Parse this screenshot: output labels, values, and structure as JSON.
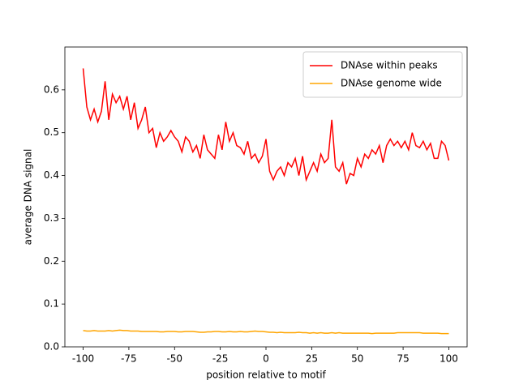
{
  "chart_data": {
    "type": "line",
    "xlabel": "position relative to motif",
    "ylabel": "average DNA signal",
    "x": [
      -100,
      -98,
      -96,
      -94,
      -92,
      -90,
      -88,
      -86,
      -84,
      -82,
      -80,
      -78,
      -76,
      -74,
      -72,
      -70,
      -68,
      -66,
      -64,
      -62,
      -60,
      -58,
      -56,
      -54,
      -52,
      -50,
      -48,
      -46,
      -44,
      -42,
      -40,
      -38,
      -36,
      -34,
      -32,
      -30,
      -28,
      -26,
      -24,
      -22,
      -20,
      -18,
      -16,
      -14,
      -12,
      -10,
      -8,
      -6,
      -4,
      -2,
      0,
      2,
      4,
      6,
      8,
      10,
      12,
      14,
      16,
      18,
      20,
      22,
      24,
      26,
      28,
      30,
      32,
      34,
      36,
      38,
      40,
      42,
      44,
      46,
      48,
      50,
      52,
      54,
      56,
      58,
      60,
      62,
      64,
      66,
      68,
      70,
      72,
      74,
      76,
      78,
      80,
      82,
      84,
      86,
      88,
      90,
      92,
      94,
      96,
      98,
      100
    ],
    "series": [
      {
        "name": "DNAse within peaks",
        "color": "#ff0000",
        "values": [
          0.65,
          0.56,
          0.53,
          0.555,
          0.525,
          0.55,
          0.62,
          0.53,
          0.59,
          0.57,
          0.585,
          0.555,
          0.585,
          0.53,
          0.57,
          0.51,
          0.53,
          0.56,
          0.5,
          0.51,
          0.465,
          0.5,
          0.48,
          0.49,
          0.505,
          0.49,
          0.48,
          0.455,
          0.49,
          0.48,
          0.455,
          0.47,
          0.44,
          0.495,
          0.46,
          0.45,
          0.44,
          0.495,
          0.46,
          0.525,
          0.48,
          0.5,
          0.47,
          0.465,
          0.45,
          0.48,
          0.44,
          0.45,
          0.43,
          0.445,
          0.485,
          0.41,
          0.39,
          0.41,
          0.42,
          0.4,
          0.43,
          0.42,
          0.44,
          0.4,
          0.445,
          0.39,
          0.41,
          0.43,
          0.41,
          0.45,
          0.43,
          0.44,
          0.53,
          0.42,
          0.41,
          0.43,
          0.38,
          0.405,
          0.4,
          0.44,
          0.42,
          0.45,
          0.44,
          0.46,
          0.45,
          0.47,
          0.43,
          0.47,
          0.485,
          0.47,
          0.48,
          0.465,
          0.48,
          0.46,
          0.5,
          0.47,
          0.465,
          0.48,
          0.46,
          0.475,
          0.44,
          0.44,
          0.48,
          0.47,
          0.435
        ]
      },
      {
        "name": "DNAse genome wide",
        "color": "#ffa500",
        "values": [
          0.038,
          0.037,
          0.037,
          0.038,
          0.037,
          0.037,
          0.037,
          0.038,
          0.037,
          0.038,
          0.039,
          0.038,
          0.038,
          0.037,
          0.037,
          0.037,
          0.036,
          0.036,
          0.036,
          0.036,
          0.036,
          0.035,
          0.035,
          0.036,
          0.036,
          0.036,
          0.035,
          0.035,
          0.036,
          0.036,
          0.036,
          0.035,
          0.034,
          0.034,
          0.035,
          0.035,
          0.036,
          0.036,
          0.035,
          0.035,
          0.036,
          0.035,
          0.035,
          0.036,
          0.035,
          0.035,
          0.036,
          0.037,
          0.036,
          0.036,
          0.035,
          0.034,
          0.034,
          0.033,
          0.034,
          0.033,
          0.033,
          0.033,
          0.033,
          0.034,
          0.033,
          0.033,
          0.032,
          0.033,
          0.032,
          0.033,
          0.032,
          0.032,
          0.033,
          0.032,
          0.033,
          0.032,
          0.032,
          0.032,
          0.032,
          0.032,
          0.032,
          0.032,
          0.032,
          0.031,
          0.032,
          0.032,
          0.032,
          0.032,
          0.032,
          0.032,
          0.033,
          0.033,
          0.033,
          0.033,
          0.033,
          0.033,
          0.033,
          0.032,
          0.032,
          0.032,
          0.032,
          0.032,
          0.031,
          0.031,
          0.031
        ]
      }
    ],
    "xlim": [
      -110,
      110
    ],
    "ylim": [
      0,
      0.7
    ],
    "xticks": [
      -100,
      -75,
      -50,
      -25,
      0,
      25,
      50,
      75,
      100
    ],
    "yticks": [
      {
        "value": 0,
        "label": "0.0"
      },
      0.1,
      0.2,
      0.3,
      0.4,
      0.5,
      0.6
    ],
    "legend": "upper right"
  }
}
